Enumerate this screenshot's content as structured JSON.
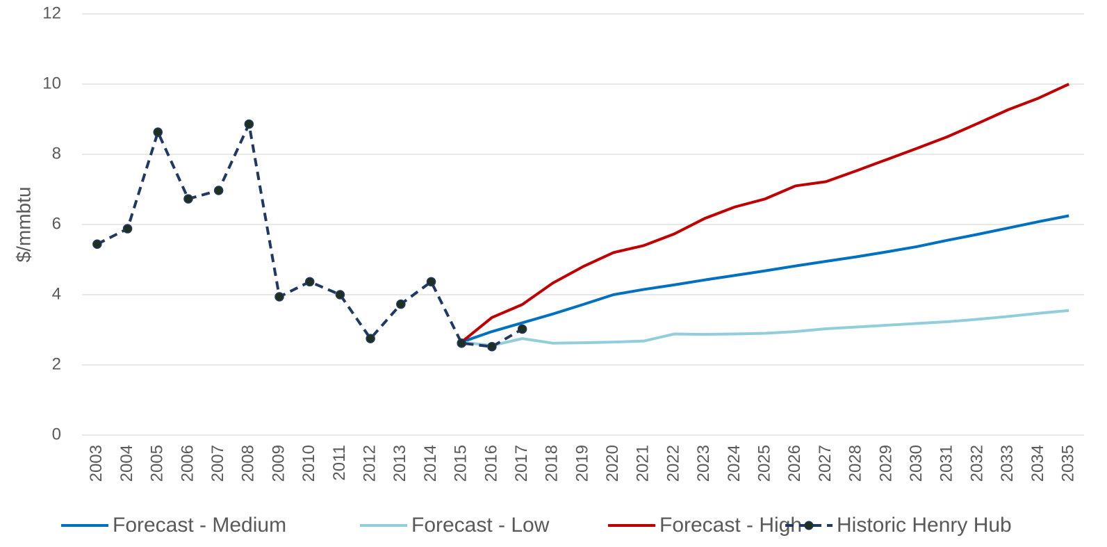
{
  "chart_data": {
    "type": "line",
    "y_label": "$/mmbtu",
    "categories": [
      "2003",
      "2004",
      "2005",
      "2006",
      "2007",
      "2008",
      "2009",
      "2010",
      "2011",
      "2012",
      "2013",
      "2014",
      "2015",
      "2016",
      "2017",
      "2018",
      "2019",
      "2020",
      "2021",
      "2022",
      "2023",
      "2024",
      "2025",
      "2026",
      "2027",
      "2028",
      "2029",
      "2030",
      "2031",
      "2032",
      "2033",
      "2034",
      "2035"
    ],
    "ylim": [
      0,
      12
    ],
    "yticks": [
      0,
      2,
      4,
      6,
      8,
      10,
      12
    ],
    "grid": true,
    "legend": "bottom",
    "series": [
      {
        "name": "Forecast - Medium",
        "color": "#0070c0",
        "values": [
          null,
          null,
          null,
          null,
          null,
          null,
          null,
          null,
          null,
          null,
          null,
          null,
          2.65,
          2.95,
          3.2,
          3.45,
          3.72,
          4.0,
          4.15,
          4.28,
          4.42,
          4.55,
          4.68,
          4.82,
          4.95,
          5.08,
          5.22,
          5.37,
          5.55,
          5.72,
          5.9,
          6.08,
          6.25
        ]
      },
      {
        "name": "Forecast - Low",
        "color": "#92cddc",
        "values": [
          null,
          null,
          null,
          null,
          null,
          null,
          null,
          null,
          null,
          null,
          null,
          null,
          2.65,
          2.55,
          2.75,
          2.62,
          2.63,
          2.65,
          2.68,
          2.88,
          2.87,
          2.88,
          2.9,
          2.95,
          3.03,
          3.08,
          3.13,
          3.18,
          3.23,
          3.3,
          3.38,
          3.47,
          3.55
        ]
      },
      {
        "name": "Forecast - High",
        "color": "#c00000",
        "values": [
          null,
          null,
          null,
          null,
          null,
          null,
          null,
          null,
          null,
          null,
          null,
          null,
          2.65,
          3.35,
          3.72,
          4.33,
          4.8,
          5.2,
          5.4,
          5.73,
          6.17,
          6.5,
          6.73,
          7.1,
          7.22,
          7.53,
          7.85,
          8.17,
          8.5,
          8.88,
          9.27,
          9.6,
          10.0
        ]
      },
      {
        "name": "Historic Henry Hub",
        "color": "#1f3864",
        "line_style": "dashed",
        "marker": "circle",
        "values": [
          5.44,
          5.88,
          8.63,
          6.73,
          6.97,
          8.86,
          3.94,
          4.37,
          4.0,
          2.75,
          3.73,
          4.37,
          2.62,
          2.52,
          3.02,
          null,
          null,
          null,
          null,
          null,
          null,
          null,
          null,
          null,
          null,
          null,
          null,
          null,
          null,
          null,
          null,
          null,
          null
        ]
      }
    ]
  }
}
